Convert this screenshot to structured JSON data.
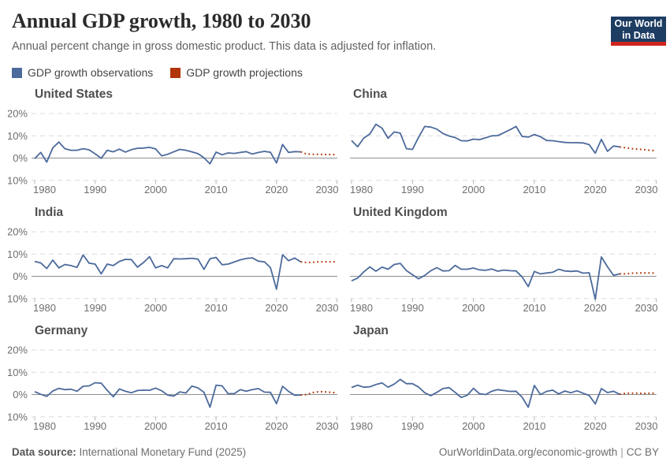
{
  "header": {
    "title": "Annual GDP growth, 1980 to 2030",
    "subtitle": "Annual percent change in gross domestic product. This data is adjusted for inflation.",
    "logo": {
      "line1": "Our World",
      "line2": "in Data",
      "bg_color": "#1d3d63",
      "bar_color": "#ce261e"
    }
  },
  "legend": {
    "items": [
      {
        "label": "GDP growth observations",
        "color": "#4C6A9C"
      },
      {
        "label": "GDP growth projections",
        "color": "#B13507"
      }
    ]
  },
  "footer": {
    "datasource_label": "Data source:",
    "datasource_value": " International Monetary Fund (2025)",
    "url": "OurWorldinData.org/economic-growth",
    "separator": "|",
    "license": "CC BY"
  },
  "chart_data": {
    "type": "line",
    "facets": "2 columns x 3 rows, shared axes",
    "x_ticks": [
      1980,
      1990,
      2000,
      2010,
      2020,
      2030
    ],
    "xlim": [
      1979.5,
      2030.5
    ],
    "y_ticks": [
      {
        "value": 20,
        "label": "20%"
      },
      {
        "value": 10,
        "label": "10%"
      },
      {
        "value": 0,
        "label": "0%"
      },
      {
        "value": -10,
        "label": "-10%"
      }
    ],
    "ylim": [
      -13,
      22.8
    ],
    "grid": "dashed horizontal gridlines, solid zero line",
    "colors": {
      "observations": "#4C6A9C",
      "projections": "#B13507",
      "gridline": "#dcdcdc",
      "zero_line": "#8f8f8f",
      "tick_mark": "#b8b8b8",
      "tick_text": "#6e6e6e"
    },
    "obs_years": [
      1980,
      2024
    ],
    "proj_years": [
      2025,
      2030
    ],
    "panels": [
      {
        "title": "United States",
        "observations": [
          -0.3,
          2.5,
          -1.8,
          4.6,
          7.2,
          4.2,
          3.5,
          3.5,
          4.2,
          3.7,
          1.9,
          -0.1,
          3.5,
          2.8,
          4.0,
          2.7,
          3.8,
          4.4,
          4.5,
          4.8,
          4.1,
          1.0,
          1.7,
          2.8,
          3.9,
          3.5,
          2.8,
          2.0,
          0.1,
          -2.6,
          2.7,
          1.5,
          2.3,
          2.1,
          2.5,
          2.9,
          1.8,
          2.5,
          3.0,
          2.6,
          -2.2,
          6.1,
          2.5,
          2.9,
          2.8
        ],
        "projections": [
          1.8,
          1.7,
          1.7,
          1.6,
          1.6,
          1.5
        ]
      },
      {
        "title": "China",
        "observations": [
          7.9,
          5.1,
          9.0,
          10.8,
          15.2,
          13.4,
          8.9,
          11.7,
          11.2,
          4.2,
          3.9,
          9.3,
          14.2,
          13.9,
          13.0,
          11.0,
          9.9,
          9.2,
          7.8,
          7.7,
          8.5,
          8.3,
          9.1,
          10.0,
          10.1,
          11.4,
          12.7,
          14.2,
          9.7,
          9.4,
          10.6,
          9.6,
          7.9,
          7.8,
          7.4,
          7.0,
          6.9,
          6.9,
          6.8,
          6.0,
          2.2,
          8.4,
          3.0,
          5.4,
          5.0
        ],
        "projections": [
          4.6,
          4.2,
          4.0,
          3.8,
          3.5,
          3.3
        ]
      },
      {
        "title": "India",
        "observations": [
          6.7,
          6.0,
          3.5,
          7.3,
          3.8,
          5.3,
          4.8,
          4.0,
          9.6,
          5.9,
          5.5,
          1.1,
          5.5,
          4.8,
          6.7,
          7.6,
          7.5,
          4.1,
          6.2,
          8.8,
          3.8,
          4.8,
          3.8,
          7.9,
          7.8,
          7.9,
          8.1,
          7.7,
          3.1,
          7.9,
          8.5,
          5.2,
          5.5,
          6.4,
          7.4,
          8.0,
          8.3,
          6.8,
          6.5,
          3.9,
          -5.8,
          9.7,
          7.0,
          8.2,
          6.5
        ],
        "projections": [
          6.2,
          6.3,
          6.5,
          6.5,
          6.5,
          6.5
        ]
      },
      {
        "title": "United Kingdom",
        "observations": [
          -2.0,
          -0.8,
          2.0,
          4.2,
          2.3,
          4.1,
          3.2,
          5.3,
          5.8,
          2.6,
          0.7,
          -1.1,
          0.4,
          2.5,
          3.9,
          2.4,
          2.5,
          4.9,
          3.2,
          3.2,
          3.7,
          2.9,
          2.7,
          3.3,
          2.3,
          2.8,
          2.5,
          2.4,
          -0.3,
          -4.6,
          2.2,
          1.1,
          1.5,
          1.8,
          3.2,
          2.4,
          2.2,
          2.4,
          1.4,
          1.6,
          -10.3,
          8.7,
          4.3,
          0.4,
          1.1
        ],
        "projections": [
          1.1,
          1.4,
          1.5,
          1.5,
          1.5,
          1.4
        ]
      },
      {
        "title": "Germany",
        "observations": [
          1.3,
          0.1,
          -0.8,
          1.6,
          2.8,
          2.2,
          2.4,
          1.5,
          3.7,
          3.9,
          5.3,
          5.1,
          1.9,
          -1.0,
          2.5,
          1.5,
          0.8,
          1.8,
          2.0,
          1.9,
          2.9,
          1.7,
          -0.2,
          -0.7,
          1.2,
          0.7,
          3.8,
          3.0,
          1.0,
          -5.7,
          4.2,
          3.9,
          0.4,
          0.4,
          2.2,
          1.5,
          2.2,
          2.7,
          1.1,
          1.0,
          -4.1,
          3.7,
          1.4,
          -0.3,
          -0.2
        ],
        "projections": [
          0.0,
          0.9,
          1.3,
          1.2,
          1.0,
          0.7
        ]
      },
      {
        "title": "Japan",
        "observations": [
          3.2,
          4.2,
          3.3,
          3.5,
          4.5,
          5.2,
          3.3,
          4.7,
          6.8,
          4.9,
          4.9,
          3.4,
          0.8,
          -0.5,
          1.0,
          2.7,
          3.1,
          1.0,
          -1.3,
          -0.3,
          2.8,
          0.4,
          0.0,
          1.5,
          2.2,
          1.8,
          1.4,
          1.5,
          -1.2,
          -5.7,
          4.1,
          0.0,
          1.4,
          2.0,
          0.3,
          1.6,
          0.8,
          1.7,
          0.6,
          -0.4,
          -4.2,
          2.7,
          0.9,
          1.5,
          0.1
        ],
        "projections": [
          0.6,
          0.6,
          0.6,
          0.5,
          0.6,
          0.6
        ]
      }
    ]
  }
}
